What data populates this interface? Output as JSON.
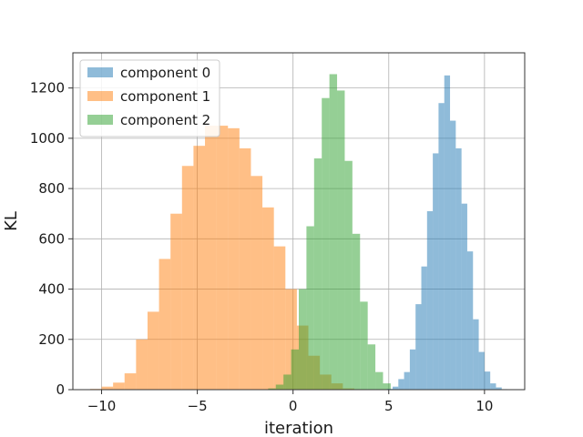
{
  "chart_data": {
    "type": "histogram",
    "title": "",
    "xlabel": "iteration",
    "ylabel": "KL",
    "xlim": [
      -11.5,
      12.1
    ],
    "ylim": [
      0,
      1340
    ],
    "xticks": [
      -10,
      -5,
      0,
      5,
      10
    ],
    "xtick_labels": [
      "−10",
      "−5",
      "0",
      "5",
      "10"
    ],
    "yticks": [
      0,
      200,
      400,
      600,
      800,
      1000,
      1200
    ],
    "ytick_labels": [
      "0",
      "200",
      "400",
      "600",
      "800",
      "1000",
      "1200"
    ],
    "grid": true,
    "legend_position": "top-left",
    "series": [
      {
        "name": "component 1",
        "color": "#ff7f0e",
        "opacity": 0.5,
        "bin_edges": [
          -10.6,
          -10.0,
          -9.4,
          -8.8,
          -8.2,
          -7.6,
          -7.0,
          -6.4,
          -5.8,
          -5.2,
          -4.6,
          -4.0,
          -3.4,
          -2.8,
          -2.2,
          -1.6,
          -1.0,
          -0.4,
          0.2,
          0.8,
          1.4,
          2.0,
          2.6,
          3.2,
          3.8
        ],
        "counts": [
          3,
          12,
          28,
          65,
          200,
          310,
          520,
          700,
          890,
          970,
          1050,
          1050,
          1040,
          960,
          850,
          725,
          570,
          400,
          255,
          135,
          60,
          25,
          5,
          2
        ]
      },
      {
        "name": "component 2",
        "color": "#2ca02c",
        "opacity": 0.5,
        "bin_edges": [
          -1.3,
          -0.9,
          -0.5,
          -0.1,
          0.3,
          0.7,
          1.1,
          1.5,
          1.9,
          2.3,
          2.7,
          3.1,
          3.5,
          3.9,
          4.3,
          4.7,
          5.1
        ],
        "counts": [
          5,
          20,
          60,
          160,
          400,
          650,
          920,
          1160,
          1255,
          1190,
          910,
          620,
          350,
          180,
          70,
          25
        ]
      },
      {
        "name": "component 0",
        "color": "#1f77b4",
        "opacity": 0.5,
        "bin_edges": [
          4.9,
          5.2,
          5.5,
          5.8,
          6.1,
          6.4,
          6.7,
          7.0,
          7.3,
          7.6,
          7.9,
          8.2,
          8.5,
          8.8,
          9.1,
          9.4,
          9.7,
          10.0,
          10.3,
          10.6,
          10.9,
          11.2
        ],
        "counts": [
          3,
          12,
          42,
          70,
          160,
          340,
          490,
          710,
          940,
          1140,
          1250,
          1070,
          960,
          740,
          550,
          280,
          150,
          72,
          25,
          9,
          2
        ]
      }
    ],
    "legend_order": [
      "component 0",
      "component 1",
      "component 2"
    ]
  }
}
